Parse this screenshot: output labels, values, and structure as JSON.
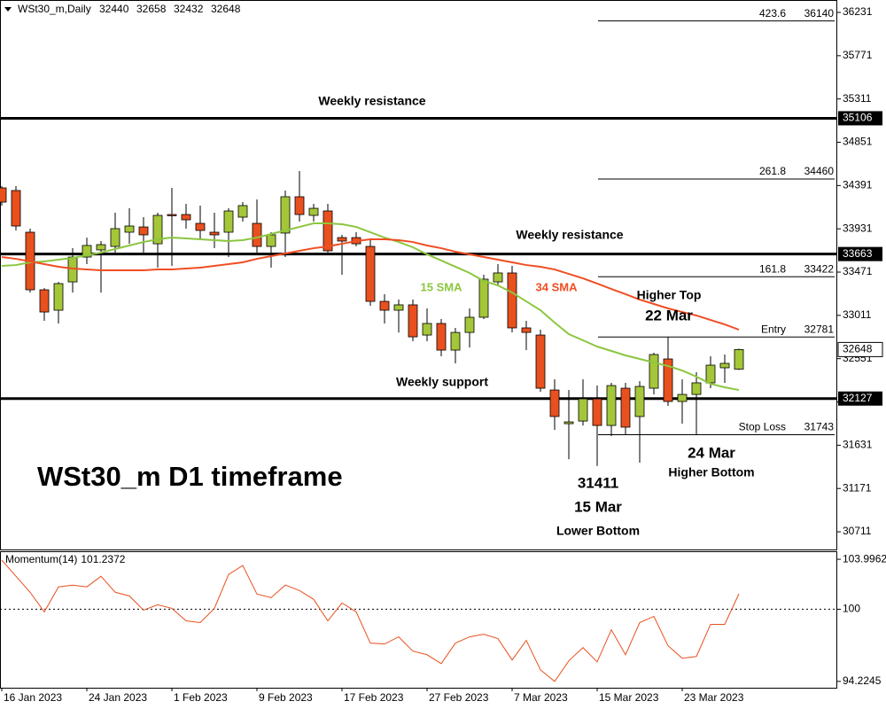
{
  "header": {
    "symbol": "WSt30_m,Daily"
  },
  "chart_data": [
    {
      "type": "candlestick",
      "title": "WSt30_m D1 timeframe",
      "categories": [
        "16 Jan 2023",
        null,
        null,
        null,
        null,
        null,
        "24 Jan 2023",
        null,
        null,
        null,
        null,
        null,
        "1 Feb 2023",
        null,
        null,
        null,
        null,
        null,
        "9 Feb 2023",
        null,
        null,
        null,
        null,
        null,
        "17 Feb 2023",
        null,
        null,
        null,
        null,
        null,
        "27 Feb 2023",
        null,
        null,
        null,
        null,
        null,
        "7 Mar 2023",
        null,
        null,
        null,
        null,
        null,
        "15 Mar 2023",
        null,
        null,
        null,
        null,
        null,
        "23 Mar 2023",
        null,
        null,
        null,
        null
      ],
      "open": [
        34366,
        34338,
        33895,
        33283,
        33066,
        33367,
        33631,
        33707,
        33744,
        33895,
        33951,
        33772,
        34083,
        34083,
        33989,
        33895,
        33895,
        34055,
        33989,
        33744,
        33886,
        34272,
        34074,
        34121,
        33838,
        33838,
        33744,
        33160,
        33066,
        33123,
        32802,
        32925,
        32642,
        32830,
        32991,
        33367,
        33462,
        32878,
        32802,
        32218,
        31860,
        31888,
        32124,
        31841,
        32237,
        31936,
        32237,
        32548,
        32096,
        32171,
        32294,
        32454,
        32440
      ],
      "high": [
        34385,
        34385,
        33933,
        33300,
        33367,
        33725,
        33838,
        33801,
        34102,
        34149,
        34055,
        34102,
        34366,
        34196,
        34178,
        34102,
        34149,
        34215,
        34243,
        33895,
        34338,
        34545,
        34196,
        34196,
        33867,
        33895,
        33820,
        33236,
        33179,
        33179,
        33085,
        32972,
        32878,
        33085,
        33443,
        33556,
        33537,
        32953,
        32859,
        32331,
        32218,
        32331,
        32265,
        32294,
        32294,
        32312,
        32614,
        32781,
        32331,
        32407,
        32576,
        32595,
        32658
      ],
      "low": [
        34178,
        33914,
        33254,
        32953,
        32925,
        33254,
        33556,
        33254,
        33678,
        33772,
        33678,
        33518,
        33537,
        33933,
        33820,
        33725,
        33631,
        34008,
        33678,
        33518,
        33631,
        34008,
        34008,
        33678,
        33443,
        33744,
        33113,
        32925,
        32830,
        32736,
        32736,
        32576,
        32501,
        32670,
        32972,
        33330,
        32830,
        32642,
        32199,
        31794,
        31483,
        31841,
        31411,
        31728,
        31747,
        31446,
        32171,
        32049,
        31860,
        31743,
        32237,
        32294,
        32432
      ],
      "close": [
        34215,
        33961,
        33283,
        33047,
        33349,
        33631,
        33754,
        33763,
        33933,
        33961,
        33867,
        34074,
        34070,
        34027,
        33914,
        33867,
        34121,
        34178,
        33744,
        33867,
        34272,
        34083,
        34149,
        33697,
        33801,
        33772,
        33160,
        33066,
        33123,
        32783,
        32925,
        32642,
        32830,
        32991,
        33396,
        33462,
        32878,
        32830,
        32237,
        31936,
        31879,
        32124,
        31841,
        32265,
        31823,
        32256,
        32595,
        32096,
        32171,
        32294,
        32482,
        32501,
        32648
      ],
      "up_color": "#a4c639",
      "down_color": "#e8501e",
      "series": [
        {
          "name": "15 SMA",
          "color": "#8cc63f",
          "values": [
            33537,
            33546,
            33575,
            33584,
            33603,
            33622,
            33650,
            33678,
            33716,
            33754,
            33791,
            33820,
            33838,
            33829,
            33820,
            33810,
            33801,
            33810,
            33838,
            33876,
            33914,
            33951,
            33989,
            33989,
            33980,
            33951,
            33895,
            33838,
            33791,
            33735,
            33660,
            33594,
            33528,
            33462,
            33377,
            33330,
            33254,
            33160,
            33066,
            32934,
            32812,
            32746,
            32680,
            32633,
            32586,
            32548,
            32510,
            32473,
            32425,
            32360,
            32284,
            32247,
            32218
          ]
        },
        {
          "name": "34 SMA",
          "color": "#f04e23",
          "values": [
            33631,
            33612,
            33584,
            33556,
            33528,
            33509,
            33499,
            33490,
            33490,
            33490,
            33490,
            33499,
            33499,
            33509,
            33518,
            33537,
            33556,
            33575,
            33612,
            33641,
            33669,
            33697,
            33725,
            33744,
            33772,
            33801,
            33820,
            33820,
            33810,
            33791,
            33754,
            33725,
            33688,
            33660,
            33631,
            33603,
            33575,
            33546,
            33528,
            33499,
            33452,
            33405,
            33349,
            33292,
            33236,
            33179,
            33132,
            33085,
            33047,
            33010,
            32962,
            32915,
            32859
          ]
        }
      ],
      "ylim": [
        30523,
        36363
      ],
      "yticks": [
        36231,
        35771,
        35311,
        34851,
        34391,
        33931,
        33471,
        33011,
        32551,
        32091,
        31631,
        31171,
        30711
      ],
      "levels": [
        {
          "value": 35106,
          "label": "Weekly resistance"
        },
        {
          "value": 33663,
          "label": "Weekly resistance"
        },
        {
          "value": 32127,
          "label": "Weekly support"
        }
      ],
      "fib_levels": [
        {
          "name": "423.6",
          "value": 36140
        },
        {
          "name": "261.8",
          "value": 34460
        },
        {
          "name": "161.8",
          "value": 33422
        },
        {
          "name": "Entry",
          "value": 32781
        },
        {
          "name": "Stop Loss",
          "value": 31743
        }
      ],
      "annotations": [
        "Higher Top",
        "22 Mar",
        "24 Mar",
        "Higher Bottom",
        "15 Mar",
        "Lower Bottom"
      ]
    },
    {
      "type": "line",
      "title": "Momentum(14)",
      "series": [
        {
          "name": "Momentum(14)",
          "color": "#e8501e",
          "values": [
            103.93,
            102.64,
            101.36,
            99.79,
            101.79,
            101.93,
            101.79,
            102.64,
            101.36,
            101.07,
            99.93,
            100.36,
            100.07,
            99.07,
            98.93,
            100.07,
            102.78,
            103.5,
            101.21,
            100.93,
            101.93,
            101.5,
            100.79,
            99.07,
            100.5,
            99.79,
            97.29,
            97.22,
            97.79,
            96.65,
            96.36,
            95.65,
            97.29,
            97.79,
            98.0,
            97.65,
            95.94,
            97.51,
            95.15,
            94.22,
            95.87,
            96.93,
            95.79,
            98.36,
            96.36,
            98.93,
            99.43,
            97.08,
            96.08,
            96.22,
            98.79,
            98.79,
            101.2372
          ]
        }
      ],
      "ylim": [
        93.72,
        104.64
      ],
      "yticks": [
        103.9962,
        100,
        94.2245
      ],
      "baseline": 100
    }
  ]
}
